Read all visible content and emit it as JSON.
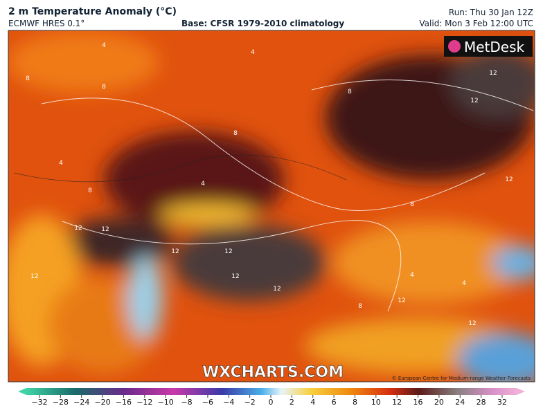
{
  "header": {
    "title": "2 m Temperature Anomaly (°C)",
    "model": "ECMWF HRES 0.1°",
    "base": "Base: CFSR 1979-2010 climatology",
    "run": "Run: Thu 30 Jan 12Z",
    "valid": "Valid: Mon 3 Feb 12:00 UTC"
  },
  "map": {
    "logo": "MetDesk",
    "watermark": "WXCHARTS.COM",
    "attribution": "© European Centre for Medium-range Weather Forecasts",
    "contour_labels": [
      "4",
      "4",
      "8",
      "8",
      "8",
      "12",
      "12",
      "8",
      "4",
      "4",
      "8",
      "12",
      "8",
      "12",
      "12",
      "12",
      "12",
      "12",
      "12",
      "12",
      "4",
      "4",
      "12",
      "12",
      "8"
    ]
  },
  "colorbar": {
    "labels": [
      "−32",
      "−28",
      "−24",
      "−20",
      "−16",
      "−12",
      "−10",
      "−8",
      "−6",
      "−4",
      "−2",
      "0",
      "2",
      "4",
      "6",
      "8",
      "10",
      "12",
      "16",
      "20",
      "24",
      "28",
      "32"
    ]
  }
}
